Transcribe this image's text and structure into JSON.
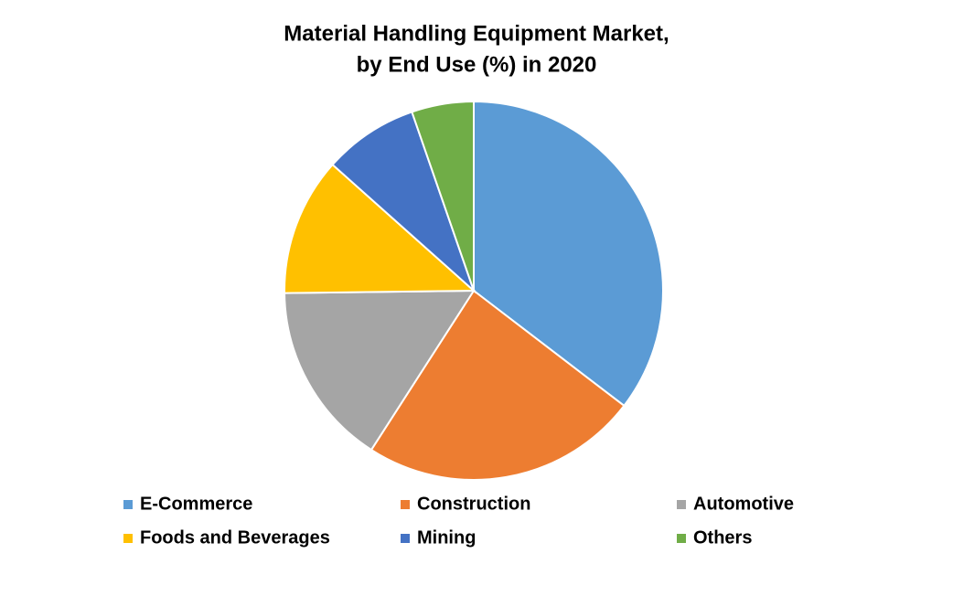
{
  "chart_data": {
    "type": "pie",
    "title": [
      "Material Handling Equipment Market,",
      "by End Use (%) in 2020"
    ],
    "categories": [
      "E-Commerce",
      "Construction",
      "Automotive",
      "Foods and Beverages",
      "Mining",
      "Others"
    ],
    "values": [
      35.4,
      23.7,
      15.7,
      11.8,
      8.1,
      5.3
    ],
    "colors": [
      "#5b9bd5",
      "#ed7d31",
      "#a5a5a5",
      "#ffc000",
      "#4472c4",
      "#70ad47"
    ]
  }
}
